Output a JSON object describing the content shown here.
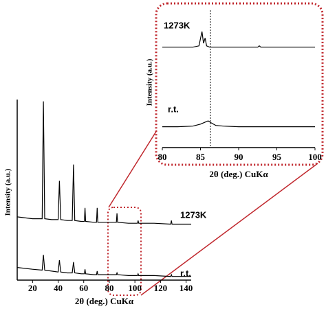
{
  "chart_data": [
    {
      "type": "line",
      "x_label": "2θ (deg.) CuKα",
      "y_label": "Intensity (a.u.)",
      "xlim": [
        8,
        144
      ],
      "ylim": [
        0,
        100
      ],
      "xticks": [
        20,
        40,
        60,
        80,
        100,
        120,
        140
      ],
      "series": [
        {
          "name": "1273K",
          "color": "#000000",
          "x": [
            8,
            20,
            27.5,
            28.5,
            29.5,
            35,
            40,
            41,
            42,
            47,
            51,
            52,
            53,
            58,
            60.5,
            61,
            61.5,
            68,
            70,
            70.5,
            71,
            80,
            85.5,
            86,
            86.5,
            95,
            102,
            102.5,
            103,
            115,
            128,
            128.5,
            129,
            135,
            144
          ],
          "values": [
            35,
            34,
            34,
            99,
            34,
            33.5,
            33.5,
            55,
            33.5,
            33,
            33,
            64,
            33,
            32.5,
            32.5,
            40,
            32.5,
            32,
            32,
            40,
            32,
            32,
            32,
            37,
            32,
            31.5,
            31.5,
            33,
            31.5,
            31.5,
            31,
            33,
            31,
            31,
            31
          ]
        },
        {
          "name": "r.t.",
          "color": "#000000",
          "x": [
            8,
            20,
            27.5,
            28.5,
            29.5,
            35,
            40,
            41,
            42,
            47,
            51,
            52,
            53,
            58,
            60.5,
            61,
            61.5,
            68,
            70,
            70.5,
            71,
            80,
            85.5,
            86,
            86.5,
            95,
            102,
            102.5,
            103,
            115,
            128,
            128.5,
            129,
            135,
            144
          ],
          "values": [
            7,
            6,
            5.5,
            14,
            5.5,
            5,
            4.5,
            11,
            4.5,
            4,
            4,
            10,
            4,
            3.5,
            3.5,
            6,
            3.5,
            3,
            3,
            5,
            3,
            3,
            3,
            4,
            3,
            2.5,
            2.5,
            3.5,
            2.5,
            2.5,
            2,
            3,
            2,
            2,
            2
          ]
        }
      ]
    },
    {
      "type": "line",
      "x_label": "2θ (deg.) CuKα",
      "y_label": "Intensity (a.u.)",
      "xlim": [
        80,
        100
      ],
      "ylim": [
        0,
        100
      ],
      "xticks": [
        80,
        85,
        90,
        95,
        100
      ],
      "reference_line_x": 86.3,
      "series": [
        {
          "name": "1273K",
          "color": "#000000",
          "x": [
            80,
            82,
            84,
            84.8,
            85.2,
            85.4,
            85.6,
            85.8,
            86.2,
            88,
            90,
            92.5,
            92.7,
            92.9,
            95,
            98,
            100
          ],
          "values": [
            77,
            77,
            77,
            78,
            89,
            80,
            84,
            78,
            77,
            77,
            77,
            77,
            78,
            77,
            77,
            77,
            77
          ]
        },
        {
          "name": "r.t.",
          "color": "#000000",
          "x": [
            80,
            82,
            84,
            85,
            85.6,
            86,
            86.4,
            87,
            88,
            90,
            92,
            95,
            98,
            100
          ],
          "values": [
            16,
            16,
            16.5,
            18,
            19.5,
            20.5,
            19,
            17,
            16.5,
            16,
            16,
            16,
            16,
            16
          ]
        }
      ]
    }
  ]
}
